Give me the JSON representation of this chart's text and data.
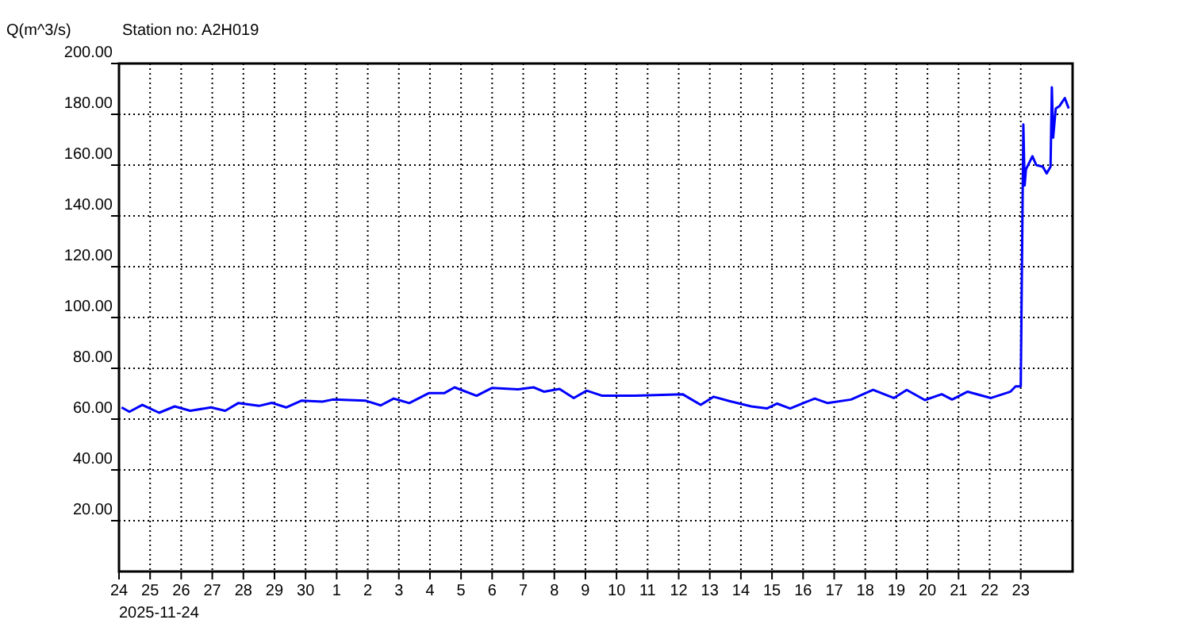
{
  "chart_data": {
    "type": "line",
    "title": "Station no: A2H019",
    "ylabel": "Q(m^3/s)",
    "annotations": [
      "2025-11-24"
    ],
    "x": [
      "2025-11-24T02:00",
      "2025-11-24T08:00",
      "2025-11-24T18:00",
      "2025-11-25T07:00",
      "2025-11-25T19:00",
      "2025-11-26T07:00",
      "2025-11-26T23:00",
      "2025-11-27T10:00",
      "2025-11-27T20:00",
      "2025-11-28T12:00",
      "2025-11-28T22:00",
      "2025-11-29T09:00",
      "2025-11-29T21:00",
      "2025-11-30T13:00",
      "2025-11-30T21:00",
      "2025-12-01T22:00",
      "2025-12-02T10:00",
      "2025-12-02T20:00",
      "2025-12-03T08:00",
      "2025-12-03T23:00",
      "2025-12-04T11:00",
      "2025-12-04T19:00",
      "2025-12-05T12:00",
      "2025-12-06T00:00",
      "2025-12-06T20:00",
      "2025-12-07T08:00",
      "2025-12-07T16:00",
      "2025-12-08T04:00",
      "2025-12-08T15:00",
      "2025-12-09T01:00",
      "2025-12-09T13:00",
      "2025-12-10T10:00",
      "2025-12-10T14:00",
      "2025-12-12T03:00",
      "2025-12-12T17:00",
      "2025-12-13T03:00",
      "2025-12-13T15:00",
      "2025-12-14T08:00",
      "2025-12-14T20:00",
      "2025-12-15T04:00",
      "2025-12-15T14:00",
      "2025-12-16T09:00",
      "2025-12-16T19:00",
      "2025-12-17T13:00",
      "2025-12-18T06:00",
      "2025-12-18T22:00",
      "2025-12-19T08:00",
      "2025-12-19T22:00",
      "2025-12-20T11:00",
      "2025-12-20T19:00",
      "2025-12-21T07:00",
      "2025-12-22T01:00",
      "2025-12-22T16:00",
      "2025-12-22T20:00",
      "2025-12-23T00:00",
      "2025-12-23T01:00",
      "2025-12-23T02:00",
      "2025-12-23T03:00",
      "2025-12-23T04:00",
      "2025-12-23T09:00",
      "2025-12-23T12:00",
      "2025-12-23T17:00",
      "2025-12-23T20:00",
      "2025-12-23T23:00",
      "2025-12-24T00:00",
      "2025-12-24T01:00",
      "2025-12-24T03:00",
      "2025-12-24T06:00",
      "2025-12-24T10:00",
      "2025-12-24T13:00"
    ],
    "series": [
      {
        "color": "#0000ff",
        "values": [
          64.6,
          62.9,
          65.6,
          62.5,
          65,
          63.3,
          64.6,
          63.3,
          66.3,
          65.2,
          66.4,
          64.6,
          67.3,
          66.9,
          67.7,
          67.3,
          65.4,
          68.1,
          66.3,
          70.2,
          70.2,
          72.5,
          69.2,
          72.3,
          71.7,
          72.5,
          70.8,
          71.9,
          68.3,
          71.2,
          69.2,
          69.2,
          69.2,
          69.8,
          65.6,
          68.8,
          67.1,
          65,
          64.2,
          66.1,
          64.2,
          68.1,
          66.3,
          67.7,
          71.5,
          68.3,
          71.5,
          67.5,
          69.8,
          67.7,
          70.8,
          68.3,
          70.8,
          72.9,
          72.9,
          123.9,
          176,
          152,
          158.3,
          163.5,
          160,
          159.4,
          156.7,
          159.4,
          190.6,
          170.8,
          182.3,
          183.3,
          186.4,
          182.3
        ]
      }
    ],
    "xlim": [
      "2025-11-24",
      "2025-12-24T16:00"
    ],
    "xticks": [
      {
        "value": "2025-11-24",
        "label": "24"
      },
      {
        "value": "2025-11-25",
        "label": "25"
      },
      {
        "value": "2025-11-26",
        "label": "26"
      },
      {
        "value": "2025-11-27",
        "label": "27"
      },
      {
        "value": "2025-11-28",
        "label": "28"
      },
      {
        "value": "2025-11-29",
        "label": "29"
      },
      {
        "value": "2025-11-30",
        "label": "30"
      },
      {
        "value": "2025-12-01",
        "label": "1"
      },
      {
        "value": "2025-12-02",
        "label": "2"
      },
      {
        "value": "2025-12-03",
        "label": "3"
      },
      {
        "value": "2025-12-04",
        "label": "4"
      },
      {
        "value": "2025-12-05",
        "label": "5"
      },
      {
        "value": "2025-12-06",
        "label": "6"
      },
      {
        "value": "2025-12-07",
        "label": "7"
      },
      {
        "value": "2025-12-08",
        "label": "8"
      },
      {
        "value": "2025-12-09",
        "label": "9"
      },
      {
        "value": "2025-12-10",
        "label": "10"
      },
      {
        "value": "2025-12-11",
        "label": "11"
      },
      {
        "value": "2025-12-12",
        "label": "12"
      },
      {
        "value": "2025-12-13",
        "label": "13"
      },
      {
        "value": "2025-12-14",
        "label": "14"
      },
      {
        "value": "2025-12-15",
        "label": "15"
      },
      {
        "value": "2025-12-16",
        "label": "16"
      },
      {
        "value": "2025-12-17",
        "label": "17"
      },
      {
        "value": "2025-12-18",
        "label": "18"
      },
      {
        "value": "2025-12-19",
        "label": "19"
      },
      {
        "value": "2025-12-20",
        "label": "20"
      },
      {
        "value": "2025-12-21",
        "label": "21"
      },
      {
        "value": "2025-12-22",
        "label": "22"
      },
      {
        "value": "2025-12-23",
        "label": "23"
      }
    ],
    "ylim": [
      0,
      200
    ],
    "yticks": [
      {
        "value": 20,
        "label": "20.00"
      },
      {
        "value": 40,
        "label": "40.00"
      },
      {
        "value": 60,
        "label": "60.00"
      },
      {
        "value": 80,
        "label": "80.00"
      },
      {
        "value": 100,
        "label": "100.00"
      },
      {
        "value": 120,
        "label": "120.00"
      },
      {
        "value": 140,
        "label": "140.00"
      },
      {
        "value": 160,
        "label": "160.00"
      },
      {
        "value": 180,
        "label": "180.00"
      },
      {
        "value": 200,
        "label": "200.00"
      }
    ],
    "grid": true,
    "line_style": "solid",
    "marker": "none"
  }
}
